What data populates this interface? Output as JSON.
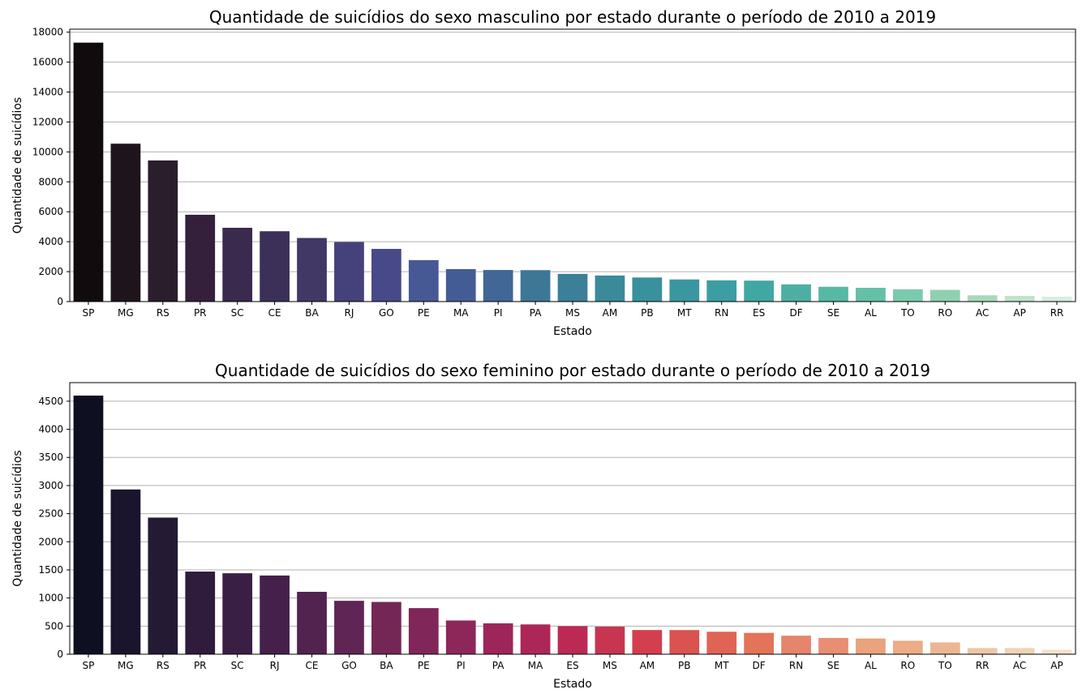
{
  "chart_data": [
    {
      "type": "bar",
      "title": "Quantidade de suicídios do sexo masculino por estado durante o período de 2010 a 2019",
      "xlabel": "Estado",
      "ylabel": "Quantidade de suicídios",
      "ylim": [
        0,
        18200
      ],
      "yticks": [
        0,
        2000,
        4000,
        6000,
        8000,
        10000,
        12000,
        14000,
        16000,
        18000
      ],
      "grid": "y",
      "palette": "mako",
      "categories": [
        "SP",
        "MG",
        "RS",
        "PR",
        "SC",
        "CE",
        "BA",
        "RJ",
        "GO",
        "PE",
        "MA",
        "PI",
        "PA",
        "MS",
        "AM",
        "PB",
        "MT",
        "RN",
        "ES",
        "DF",
        "SE",
        "AL",
        "TO",
        "RO",
        "AC",
        "AP",
        "RR"
      ],
      "values": [
        17300,
        10550,
        9430,
        5800,
        4930,
        4700,
        4250,
        3980,
        3520,
        2770,
        2170,
        2110,
        2100,
        1850,
        1740,
        1610,
        1480,
        1420,
        1400,
        1150,
        990,
        920,
        820,
        780,
        420,
        380,
        330
      ],
      "colors": [
        "#120b0e",
        "#1e141c",
        "#2a1d2c",
        "#34203b",
        "#3a2a4d",
        "#3c3058",
        "#413866",
        "#45417a",
        "#484988",
        "#475994",
        "#445c95",
        "#406795",
        "#3d7796",
        "#3b7f98",
        "#3a8a9a",
        "#39919d",
        "#3a97a0",
        "#3c9ea2",
        "#41a7a3",
        "#4dafa2",
        "#57b8a4",
        "#64c0a7",
        "#7acbae",
        "#8fd0b0",
        "#a9d8bb",
        "#c0e3c9",
        "#d8ede1"
      ]
    },
    {
      "type": "bar",
      "title": "Quantidade de suicídios do sexo feminino por estado durante o período de 2010 a 2019",
      "xlabel": "Estado",
      "ylabel": "Quantidade de suicídios",
      "ylim": [
        0,
        4830
      ],
      "yticks": [
        0,
        500,
        1000,
        1500,
        2000,
        2500,
        3000,
        3500,
        4000,
        4500
      ],
      "grid": "y",
      "palette": "rocket",
      "categories": [
        "SP",
        "MG",
        "RS",
        "PR",
        "SC",
        "RJ",
        "CE",
        "GO",
        "BA",
        "PE",
        "PI",
        "PA",
        "MA",
        "ES",
        "MS",
        "AM",
        "PB",
        "MT",
        "DF",
        "RN",
        "SE",
        "AL",
        "RO",
        "TO",
        "RR",
        "AC",
        "AP"
      ],
      "values": [
        4600,
        2930,
        2430,
        1470,
        1440,
        1400,
        1110,
        950,
        930,
        820,
        600,
        550,
        530,
        500,
        490,
        430,
        430,
        400,
        380,
        330,
        290,
        280,
        240,
        210,
        110,
        110,
        80
      ],
      "colors": [
        "#0f0f22",
        "#1a142c",
        "#241a34",
        "#2f1c3c",
        "#3a1f44",
        "#44204b",
        "#53234f",
        "#5f2554",
        "#742755",
        "#802658",
        "#8d275a",
        "#9e2559",
        "#ac2758",
        "#bc2a54",
        "#c73551",
        "#d33f4e",
        "#d95450",
        "#e06456",
        "#e37359",
        "#e5856b",
        "#e88e72",
        "#e9a37d",
        "#ebac86",
        "#ecb693",
        "#eec7a6",
        "#f0d4b7",
        "#f4e1cb"
      ]
    }
  ]
}
